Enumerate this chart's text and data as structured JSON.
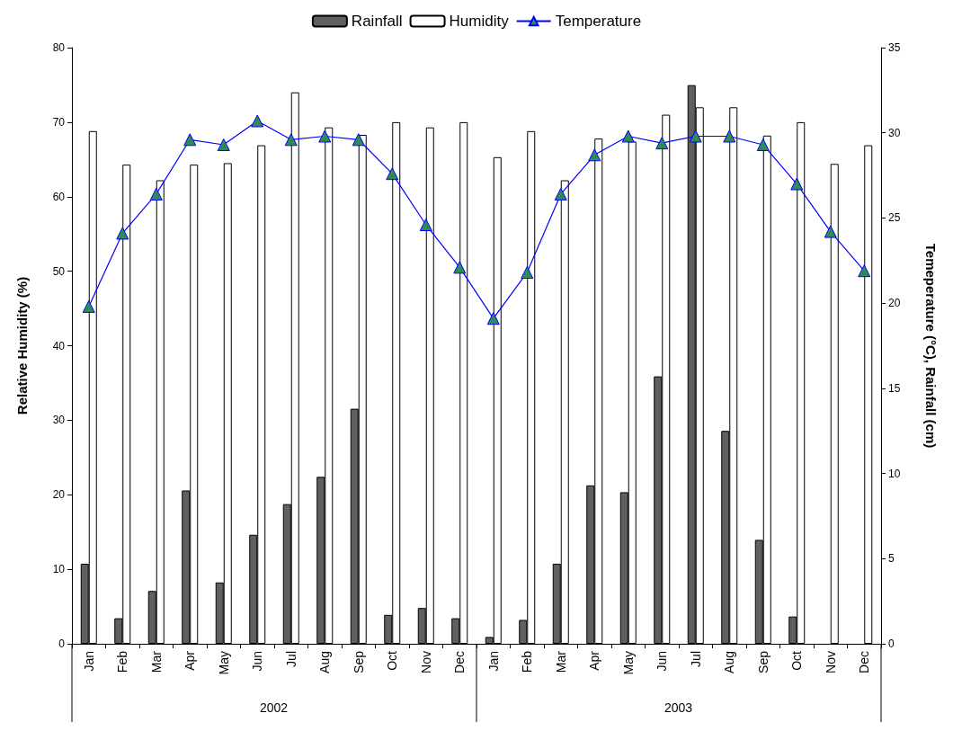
{
  "chart_data": {
    "type": "bar",
    "ylabel": "Relative Humidity (%)",
    "y2label": "Temeperature (°C), Rainfall (cm)",
    "categories": [
      "Jan",
      "Feb",
      "Mar",
      "Apr",
      "May",
      "Jun",
      "Jul",
      "Aug",
      "Sep",
      "Oct",
      "Nov",
      "Dec",
      "Jan",
      "Feb",
      "Mar",
      "Apr",
      "May",
      "Jun",
      "Jul",
      "Aug",
      "Sep",
      "Oct",
      "Nov",
      "Dec"
    ],
    "annotations": [
      "2002",
      "2003"
    ],
    "series": [
      {
        "name": "Rainfall",
        "axis": "y2",
        "color": "#606060",
        "values": [
          4.7,
          1.5,
          3.1,
          9.0,
          3.6,
          6.4,
          8.2,
          9.8,
          13.8,
          1.7,
          2.1,
          1.5,
          0.4,
          1.4,
          4.7,
          9.3,
          8.9,
          15.7,
          32.8,
          12.5,
          6.1,
          1.6,
          null,
          null
        ]
      },
      {
        "name": "Humidity",
        "axis": "y",
        "color": "#ffffff",
        "values": [
          68.8,
          64.3,
          62.2,
          64.3,
          64.5,
          66.9,
          74,
          69.3,
          68.3,
          70,
          69.3,
          70,
          65.3,
          68.8,
          62.2,
          67.8,
          67.4,
          71,
          72,
          72,
          68.2,
          70,
          64.4,
          66.9
        ]
      },
      {
        "name": "Temperature",
        "type": "line",
        "axis": "y2",
        "color": "#0000ff",
        "marker": "triangle",
        "values": [
          19.8,
          24.1,
          26.4,
          29.6,
          29.3,
          30.7,
          29.6,
          29.8,
          29.6,
          27.6,
          24.6,
          22.1,
          19.1,
          21.8,
          26.4,
          28.7,
          29.8,
          29.4,
          29.8,
          29.8,
          29.3,
          27,
          24.2,
          21.9
        ]
      }
    ],
    "ylim": [
      0,
      80
    ],
    "yticks": [
      0,
      10,
      20,
      30,
      40,
      50,
      60,
      70,
      80
    ],
    "y2lim": [
      0,
      35
    ],
    "y2ticks": [
      0,
      5,
      10,
      15,
      20,
      25,
      30,
      35
    ],
    "grid": false,
    "legend": "top"
  }
}
